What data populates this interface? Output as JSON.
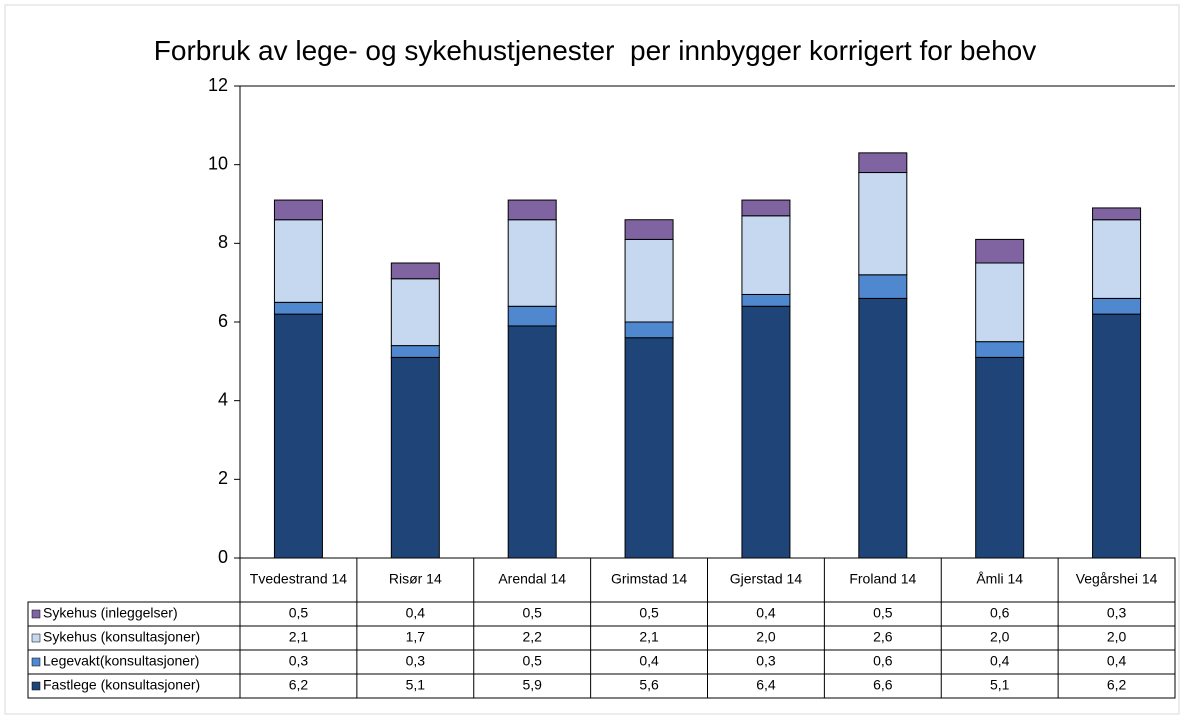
{
  "chart_data": {
    "type": "stacked_bar",
    "title": "Forbruk av lege- og sykehustjenester  per innbygger korrigert for behov",
    "categories": [
      "Tvedestrand 14",
      "Risør 14",
      "Arendal 14",
      "Grimstad 14",
      "Gjerstad 14",
      "Froland 14",
      "Åmli 14",
      "Vegårshei 14"
    ],
    "series": [
      {
        "name": "Fastlege (konsultasjoner)",
        "color": "#1f4578",
        "values": [
          6.2,
          5.1,
          5.9,
          5.6,
          6.4,
          6.6,
          5.1,
          6.2
        ],
        "value_labels": [
          "6,2",
          "5,1",
          "5,9",
          "5,6",
          "6,4",
          "6,6",
          "5,1",
          "6,2"
        ]
      },
      {
        "name": "Legevakt(konsultasjoner)",
        "color": "#5088d0",
        "values": [
          0.3,
          0.3,
          0.5,
          0.4,
          0.3,
          0.6,
          0.4,
          0.4
        ],
        "value_labels": [
          "0,3",
          "0,3",
          "0,5",
          "0,4",
          "0,3",
          "0,6",
          "0,4",
          "0,4"
        ]
      },
      {
        "name": "Sykehus (konsultasjoner)",
        "color": "#c5d8f0",
        "values": [
          2.1,
          1.7,
          2.2,
          2.1,
          2.0,
          2.6,
          2.0,
          2.0
        ],
        "value_labels": [
          "2,1",
          "1,7",
          "2,2",
          "2,1",
          "2,0",
          "2,6",
          "2,0",
          "2,0"
        ]
      },
      {
        "name": "Sykehus (inleggelser)",
        "color": "#8064a2",
        "values": [
          0.5,
          0.4,
          0.5,
          0.5,
          0.4,
          0.5,
          0.6,
          0.3
        ],
        "value_labels": [
          "0,5",
          "0,4",
          "0,5",
          "0,5",
          "0,4",
          "0,5",
          "0,6",
          "0,3"
        ]
      }
    ],
    "ylim": [
      0,
      12
    ],
    "yticks": [
      0,
      2,
      4,
      6,
      8,
      10,
      12
    ],
    "grid": false
  }
}
